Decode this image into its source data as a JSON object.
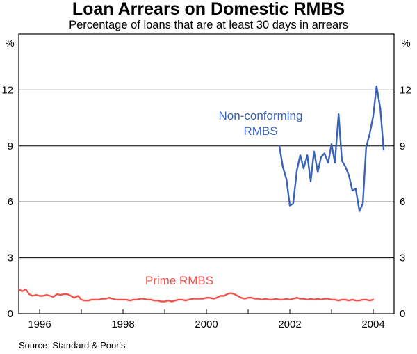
{
  "title": "Loan Arrears on Domestic RMBS",
  "subtitle": "Percentage of loans that are at least 30 days in arrears",
  "source": "Source: Standard & Poor's",
  "chart_data": {
    "type": "line",
    "ylabel_left": "%",
    "ylabel_right": "%",
    "ylim": [
      0,
      15
    ],
    "yticks": [
      0,
      3,
      6,
      9,
      12
    ],
    "ytick_labels": [
      "0",
      "3",
      "6",
      "9",
      "12"
    ],
    "xlim": [
      1995.5,
      2004.5
    ],
    "xtick_labels": [
      "1996",
      "1998",
      "2000",
      "2002",
      "2004"
    ],
    "xtick_label_positions": [
      1996.0,
      1998.0,
      2000.0,
      2002.0,
      2004.0
    ],
    "grid": true,
    "series": [
      {
        "name": "Prime RMBS",
        "color": "#f0524d",
        "x": [
          1995.5,
          1995.58,
          1995.67,
          1995.75,
          1995.83,
          1995.92,
          1996.0,
          1996.08,
          1996.17,
          1996.25,
          1996.33,
          1996.42,
          1996.5,
          1996.58,
          1996.67,
          1996.75,
          1996.83,
          1996.92,
          1997.0,
          1997.08,
          1997.17,
          1997.25,
          1997.33,
          1997.42,
          1997.5,
          1997.58,
          1997.67,
          1997.75,
          1997.83,
          1997.92,
          1998.0,
          1998.08,
          1998.17,
          1998.25,
          1998.33,
          1998.42,
          1998.5,
          1998.58,
          1998.67,
          1998.75,
          1998.83,
          1998.92,
          1999.0,
          1999.08,
          1999.17,
          1999.25,
          1999.33,
          1999.42,
          1999.5,
          1999.58,
          1999.67,
          1999.75,
          1999.83,
          1999.92,
          2000.0,
          2000.08,
          2000.17,
          2000.25,
          2000.33,
          2000.42,
          2000.5,
          2000.58,
          2000.67,
          2000.75,
          2000.83,
          2000.92,
          2001.0,
          2001.08,
          2001.17,
          2001.25,
          2001.33,
          2001.42,
          2001.5,
          2001.58,
          2001.67,
          2001.75,
          2001.83,
          2001.92,
          2002.0,
          2002.08,
          2002.17,
          2002.25,
          2002.33,
          2002.42,
          2002.5,
          2002.58,
          2002.67,
          2002.75,
          2002.83,
          2002.92,
          2003.0,
          2003.08,
          2003.17,
          2003.25,
          2003.33,
          2003.42,
          2003.5,
          2003.58,
          2003.67,
          2003.75,
          2003.83,
          2003.92,
          2004.0
        ],
        "values": [
          1.3,
          1.2,
          1.3,
          1.05,
          0.95,
          1.0,
          0.95,
          0.95,
          1.0,
          0.95,
          0.9,
          1.05,
          1.0,
          1.05,
          1.05,
          0.95,
          0.85,
          0.95,
          0.75,
          0.7,
          0.7,
          0.75,
          0.75,
          0.75,
          0.8,
          0.8,
          0.85,
          0.8,
          0.75,
          0.75,
          0.75,
          0.75,
          0.7,
          0.75,
          0.75,
          0.8,
          0.8,
          0.75,
          0.75,
          0.7,
          0.7,
          0.65,
          0.65,
          0.7,
          0.65,
          0.7,
          0.75,
          0.75,
          0.7,
          0.75,
          0.8,
          0.8,
          0.8,
          0.8,
          0.85,
          0.85,
          0.8,
          0.85,
          0.95,
          0.95,
          1.05,
          1.1,
          1.05,
          0.95,
          0.85,
          0.8,
          0.85,
          0.85,
          0.8,
          0.8,
          0.75,
          0.8,
          0.75,
          0.75,
          0.8,
          0.75,
          0.75,
          0.8,
          0.75,
          0.8,
          0.85,
          0.8,
          0.8,
          0.75,
          0.8,
          0.75,
          0.8,
          0.75,
          0.8,
          0.8,
          0.75,
          0.75,
          0.7,
          0.75,
          0.75,
          0.7,
          0.75,
          0.7,
          0.7,
          0.75,
          0.75,
          0.7,
          0.75
        ]
      },
      {
        "name": "Non-conforming RMBS",
        "color": "#3a62b5",
        "x": [
          2001.75,
          2001.83,
          2001.92,
          2002.0,
          2002.08,
          2002.17,
          2002.25,
          2002.33,
          2002.42,
          2002.5,
          2002.58,
          2002.67,
          2002.75,
          2002.83,
          2002.92,
          2003.0,
          2003.08,
          2003.17,
          2003.25,
          2003.33,
          2003.42,
          2003.5,
          2003.58,
          2003.67,
          2003.75,
          2003.83,
          2003.92,
          2004.0,
          2004.08,
          2004.17,
          2004.25
        ],
        "values": [
          9.0,
          7.9,
          7.2,
          5.8,
          5.9,
          7.7,
          8.5,
          7.8,
          8.5,
          7.1,
          8.7,
          7.6,
          8.4,
          8.6,
          8.1,
          9.1,
          8.1,
          10.7,
          8.2,
          7.9,
          7.4,
          6.6,
          6.7,
          5.5,
          5.9,
          8.9,
          9.7,
          10.6,
          12.2,
          11.0,
          8.8
        ]
      }
    ],
    "annotations": [
      {
        "text": "Non-conforming",
        "color": "#3a62b5"
      },
      {
        "text": "RMBS",
        "color": "#3a62b5"
      },
      {
        "text": "Prime RMBS",
        "color": "#f0524d"
      }
    ]
  }
}
